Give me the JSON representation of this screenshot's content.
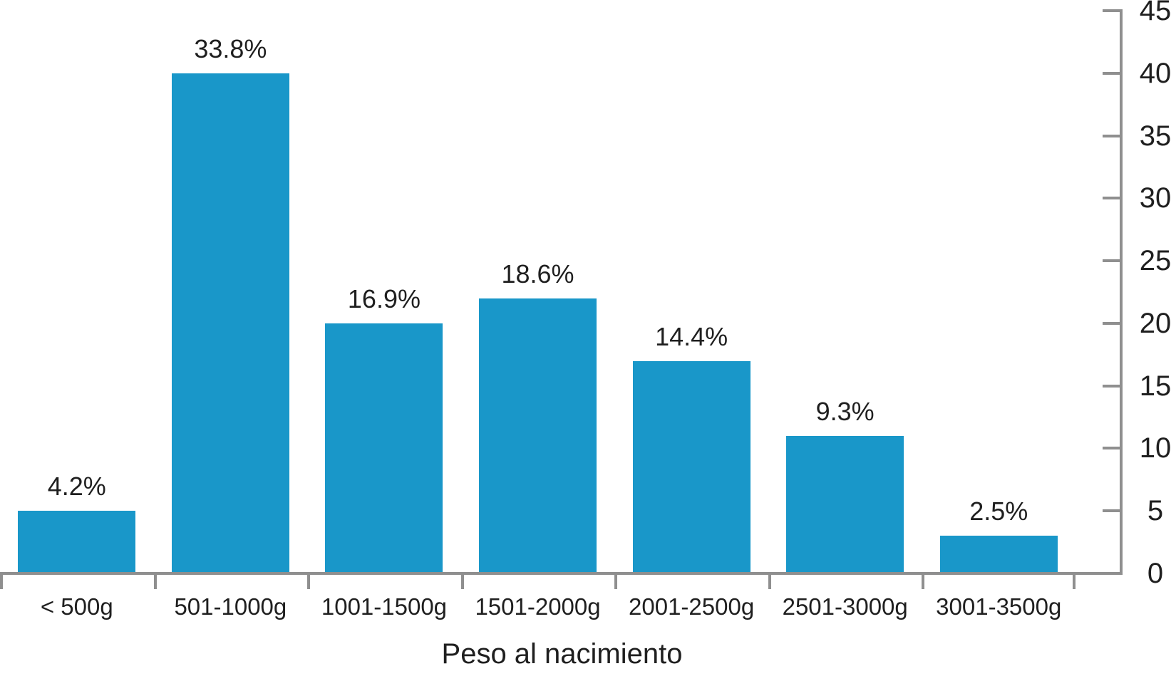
{
  "chart_data": {
    "type": "bar",
    "xlabel": "Peso al nacimiento",
    "categories": [
      "< 500g",
      "501-1000g",
      "1001-1500g",
      "1501-2000g",
      "2001-2500g",
      "2501-3000g",
      "3001-3500g"
    ],
    "values": [
      5,
      40,
      20,
      22,
      17,
      11,
      3
    ],
    "bar_labels": [
      "4.2%",
      "33.8%",
      "16.9%",
      "18.6%",
      "14.4%",
      "9.3%",
      "2.5%"
    ],
    "percent_values": [
      4.2,
      33.8,
      16.9,
      18.6,
      14.4,
      9.3,
      2.5
    ],
    "ylim": [
      0,
      45
    ],
    "yticks": [
      0,
      5,
      10,
      15,
      20,
      25,
      30,
      35,
      40,
      45
    ],
    "y_axis_side": "right",
    "grid": false,
    "legend": null,
    "colors": {
      "bar": "#1997c9",
      "axis": "#8f8f8f",
      "text": "#1f1f1f",
      "background": "#ffffff"
    }
  }
}
